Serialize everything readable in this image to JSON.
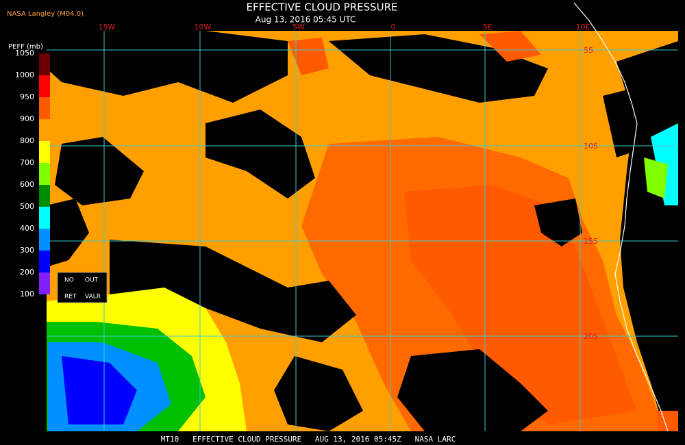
{
  "header": {
    "credit": "NASA Langley (M04.0)",
    "title": "EFFECTIVE CLOUD PRESSURE",
    "time": "Aug 13, 2016 05:45 UTC"
  },
  "map": {
    "longitude_labels": [
      "15W",
      "10W",
      "5W",
      "0",
      "5E",
      "10E"
    ],
    "latitude_labels": [
      "5S",
      "10S",
      "15S",
      "20S"
    ]
  },
  "legend": {
    "title": "PEFF (mb)",
    "ticks": [
      1050,
      1000,
      950,
      900,
      800,
      700,
      600,
      500,
      400,
      300,
      200,
      100
    ],
    "colors": [
      "#6b0000",
      "#ff0000",
      "#ff5a00",
      "#ffa000",
      "#ffff00",
      "#80ff00",
      "#008c00",
      "#00ffff",
      "#0090ff",
      "#0000ff",
      "#8020ff"
    ],
    "no_data": [
      "NO",
      "OUT",
      "RET",
      "VALR"
    ]
  },
  "footer": "MT10   EFFECTIVE CLOUD PRESSURE   AUG 13, 2016 05:45Z   NASA LARC"
}
